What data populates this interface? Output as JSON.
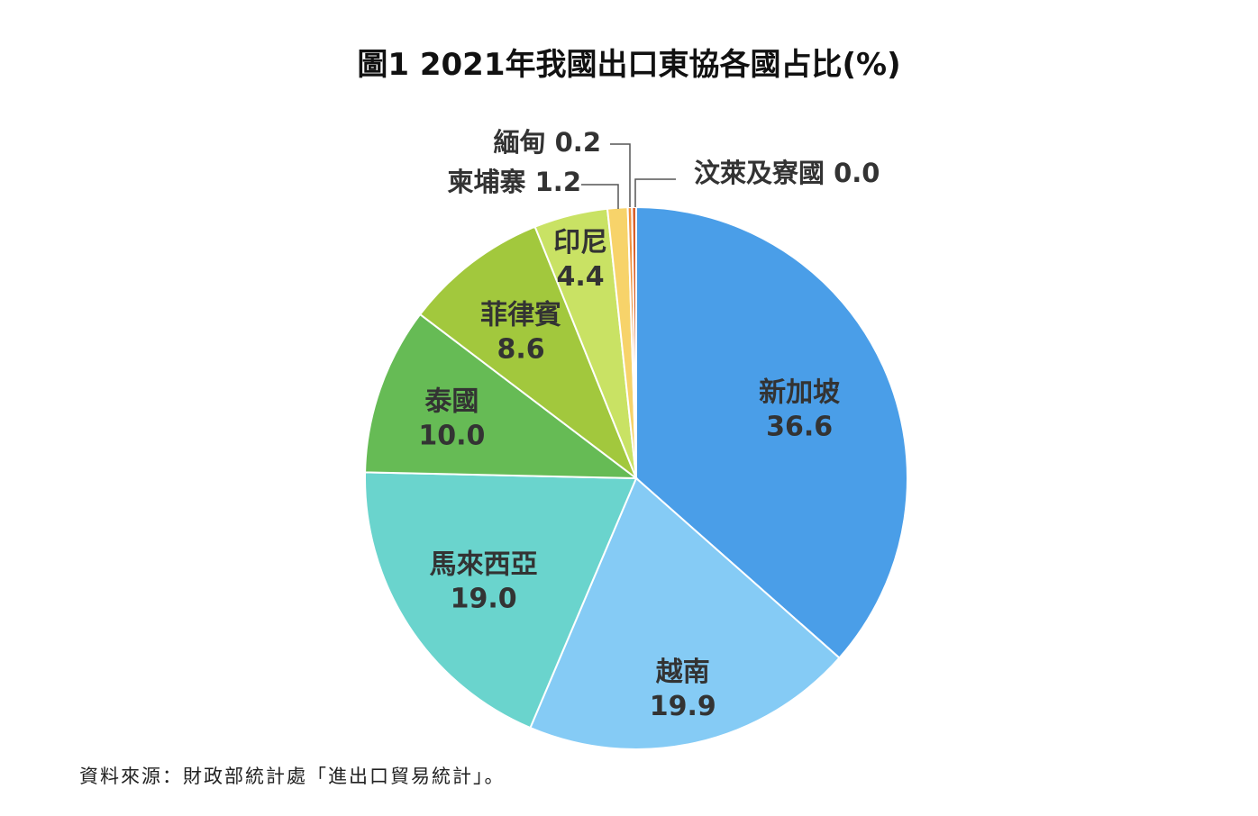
{
  "title": "圖1 2021年我國出口東協各國占比(%)",
  "source": "資料來源：財政部統計處「進出口貿易統計」。",
  "chart_data": {
    "type": "pie",
    "title": "圖1 2021年我國出口東協各國占比(%)",
    "unit": "%",
    "slices": [
      {
        "name": "新加坡",
        "value": 36.6,
        "display": "36.6",
        "color": "#4a9ee8"
      },
      {
        "name": "越南",
        "value": 19.9,
        "display": "19.9",
        "color": "#85cbf5"
      },
      {
        "name": "馬來西亞",
        "value": 19.0,
        "display": "19.0",
        "color": "#6ad4cd"
      },
      {
        "name": "泰國",
        "value": 10.0,
        "display": "10.0",
        "color": "#66bb55"
      },
      {
        "name": "菲律賓",
        "value": 8.6,
        "display": "8.6",
        "color": "#a2c83d"
      },
      {
        "name": "印尼",
        "value": 4.4,
        "display": "4.4",
        "color": "#c9e264"
      },
      {
        "name": "柬埔寨",
        "value": 1.2,
        "display": "1.2",
        "color": "#f7d36a"
      },
      {
        "name": "緬甸",
        "value": 0.2,
        "display": "0.2",
        "color": "#f0903a"
      },
      {
        "name": "汶萊及寮國",
        "value": 0.0,
        "display": "0.0",
        "color": "#d9602a"
      }
    ]
  }
}
